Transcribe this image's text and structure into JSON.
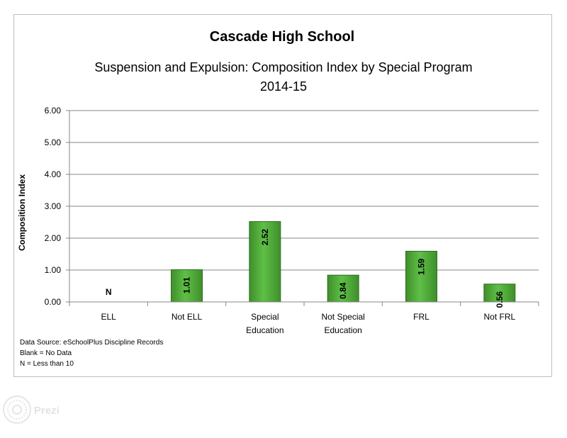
{
  "chart_data": {
    "type": "bar",
    "title": "Cascade High School",
    "subtitle": "Suspension and Expulsion: Composition Index by Special Program",
    "year": "2014-15",
    "ylabel": "Composition Index",
    "xlabel": "",
    "ylim": [
      0,
      6
    ],
    "yticks": [
      "0.00",
      "1.00",
      "2.00",
      "3.00",
      "4.00",
      "5.00",
      "6.00"
    ],
    "categories": [
      [
        "ELL"
      ],
      [
        "Not ELL"
      ],
      [
        "Special",
        "Education"
      ],
      [
        "Not Special",
        "Education"
      ],
      [
        "FRL"
      ],
      [
        "Not FRL"
      ]
    ],
    "values": [
      null,
      1.01,
      2.52,
      0.84,
      1.59,
      0.56
    ],
    "data_labels": [
      "N",
      "1.01",
      "2.52",
      "0.84",
      "1.59",
      "0.56"
    ],
    "bar_color": "#5fbf47",
    "grid": true,
    "legend": "none"
  },
  "notes": [
    "Data Source: eSchoolPlus Discipline Records",
    "Blank = No Data",
    "N = Less than 10"
  ],
  "watermark": {
    "text": "Prezi",
    "icon": "prezi-logo-icon"
  }
}
